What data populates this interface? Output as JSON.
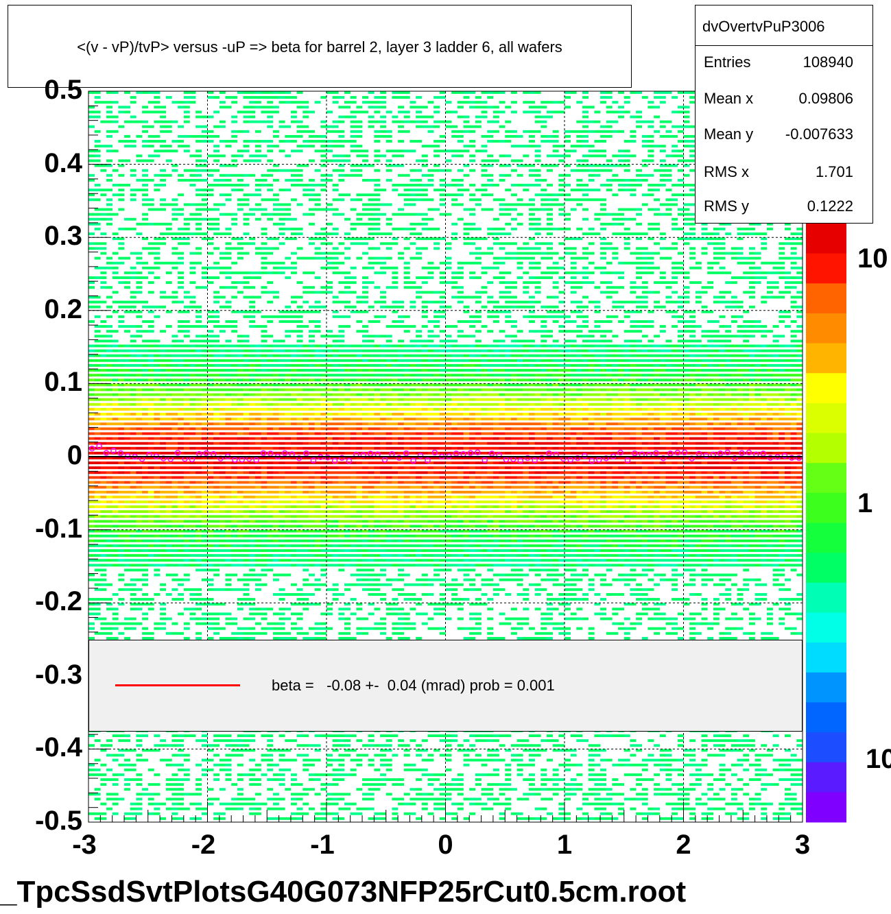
{
  "chart_data": {
    "type": "heatmap",
    "title": "<(v - vP)/tvP> versus  -uP => beta for barrel 2, layer 3 ladder 6, all wafers",
    "xlim": [
      -3,
      3
    ],
    "ylim": [
      -0.5,
      0.5
    ],
    "x_ticks": [
      "-3",
      "-2",
      "-1",
      "0",
      "1",
      "2",
      "3"
    ],
    "y_ticks": [
      "0.5",
      "0.4",
      "0.3",
      "0.2",
      "0.1",
      "0",
      "-0.1",
      "-0.2",
      "-0.3",
      "-0.4",
      "-0.5"
    ],
    "z_scale": "log",
    "z_ticks": [
      "10",
      "1",
      "10"
    ],
    "grid": true,
    "band_center_y": 0.0,
    "band_rms_y": 0.1222,
    "fit_line": {
      "slope_mrad": -0.08,
      "color": "#ff0000"
    },
    "colors": {
      "low": "#00ff7f",
      "mid": "#ffff00",
      "high": "#ff2a00",
      "profile_marker": "#ff00ff"
    }
  },
  "stats": {
    "name": "dvOvertvPuP3006",
    "rows": [
      {
        "label": "Entries",
        "value": "108940"
      },
      {
        "label": "Mean x",
        "value": "0.09806"
      },
      {
        "label": "Mean y",
        "value": "-0.007633"
      },
      {
        "label": "RMS x",
        "value": "1.701"
      },
      {
        "label": "RMS y",
        "value": "0.1222"
      }
    ]
  },
  "legend": {
    "text": "beta =   -0.08 +-  0.04 (mrad) prob = 0.001"
  },
  "footer": "_TpcSsdSvtPlotsG40G073NFP25rCut0.5cm.root"
}
